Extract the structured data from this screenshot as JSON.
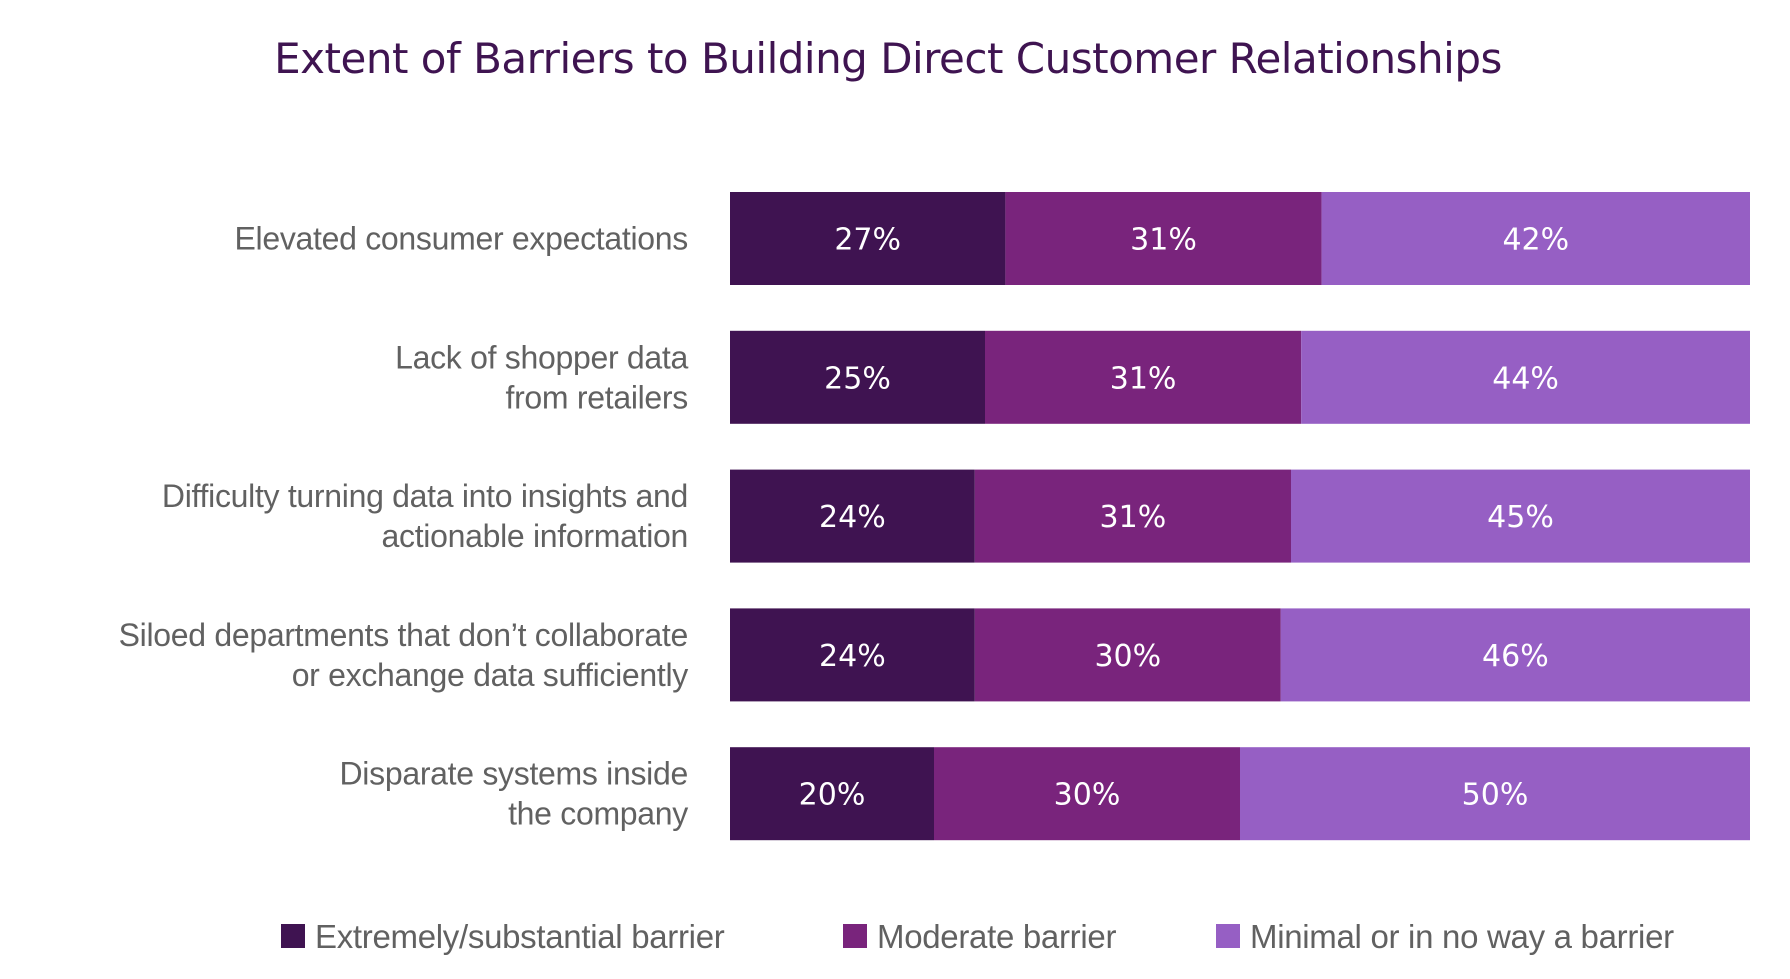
{
  "chart_data": {
    "type": "bar",
    "orientation": "horizontal",
    "stacked": true,
    "title": "Extent of Barriers to Building Direct Customer Relationships",
    "xlabel": "",
    "ylabel": "",
    "xlim": [
      0,
      100
    ],
    "grid": false,
    "legend_position": "bottom",
    "categories": [
      [
        "Elevated consumer expectations"
      ],
      [
        "Lack of shopper data",
        "from retailers"
      ],
      [
        "Difficulty turning data into insights and",
        "actionable information"
      ],
      [
        "Siloed departments that don’t collaborate",
        "or exchange data sufficiently"
      ],
      [
        "Disparate systems inside",
        "the company"
      ]
    ],
    "series": [
      {
        "name": "Extremely/substantial barrier",
        "color": "#3f1351",
        "values": [
          27,
          25,
          24,
          24,
          20
        ],
        "labels": [
          "27%",
          "25%",
          "24%",
          "24%",
          "20%"
        ]
      },
      {
        "name": "Moderate barrier",
        "color": "#79247c",
        "values": [
          31,
          31,
          31,
          30,
          30
        ],
        "labels": [
          "31%",
          "31%",
          "31%",
          "30%",
          "30%"
        ]
      },
      {
        "name": "Minimal or in no way a barrier",
        "color": "#965fc4",
        "values": [
          42,
          44,
          45,
          46,
          50
        ],
        "labels": [
          "42%",
          "44%",
          "45%",
          "46%",
          "50%"
        ]
      }
    ]
  }
}
